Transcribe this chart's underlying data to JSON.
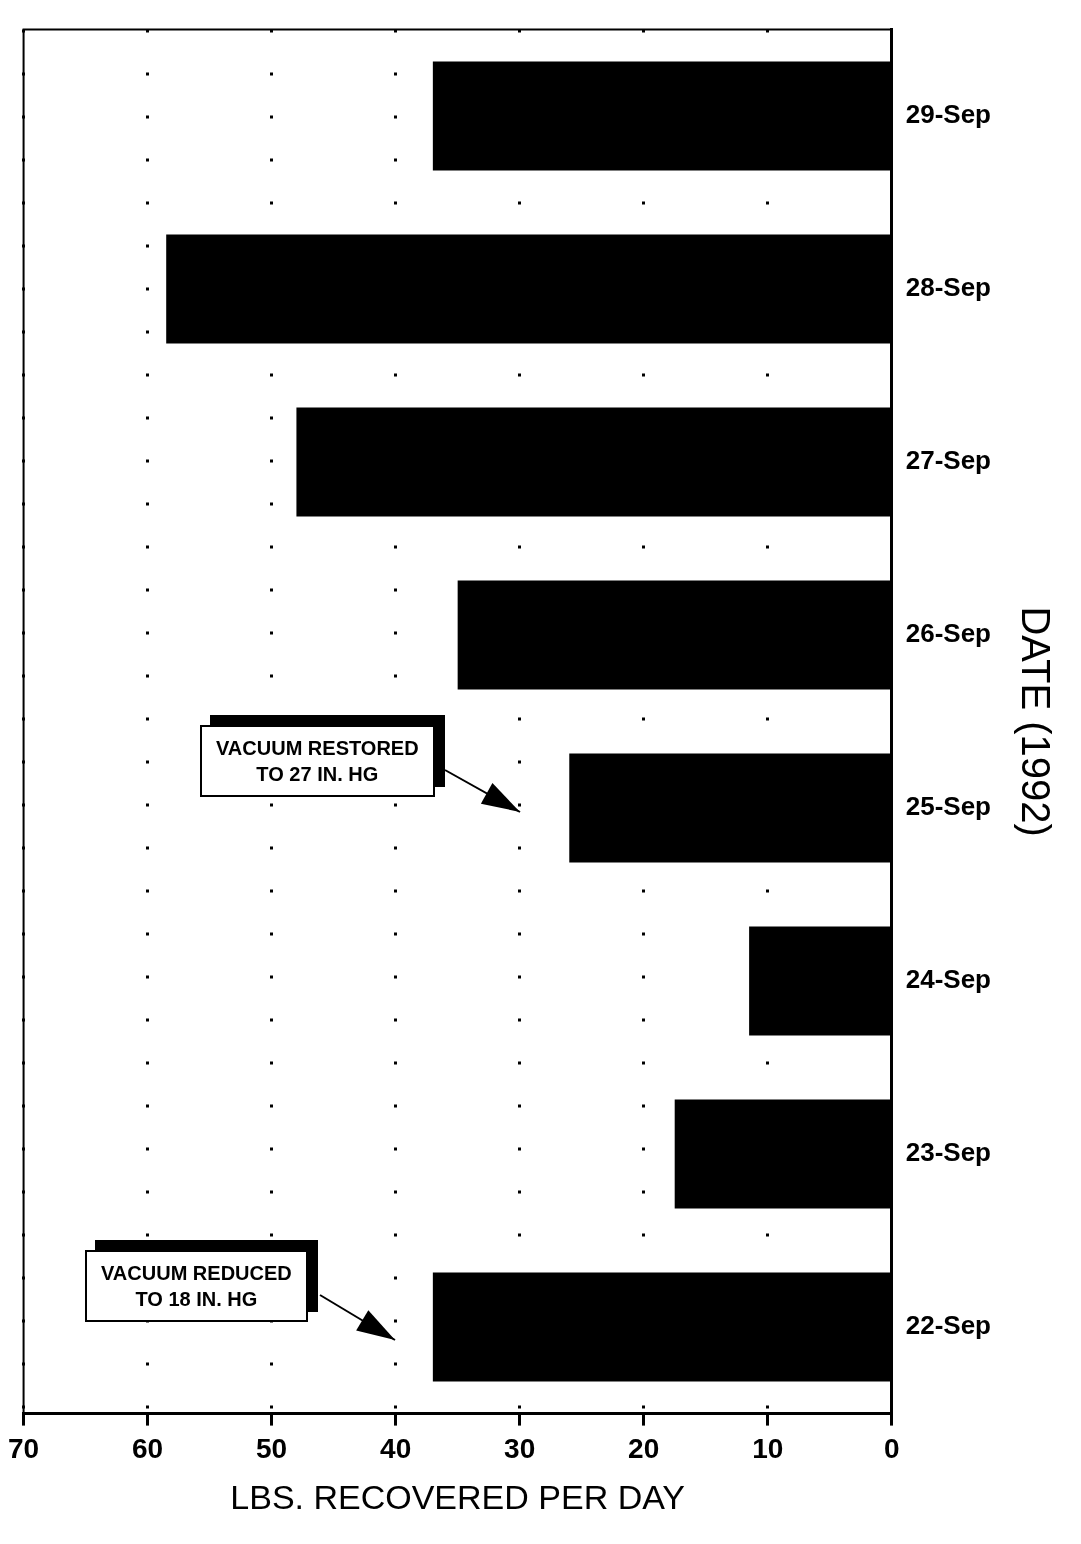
{
  "chart_data": {
    "type": "bar",
    "orientation": "horizontal",
    "categories": [
      "29-Sep",
      "28-Sep",
      "27-Sep",
      "26-Sep",
      "25-Sep",
      "24-Sep",
      "23-Sep",
      "22-Sep"
    ],
    "values": [
      37,
      58.5,
      48,
      35,
      26,
      11.5,
      17.5,
      37
    ],
    "color": "#000000",
    "xlabel": "LBS. RECOVERED PER DAY",
    "ylabel": "DATE (1992)",
    "xlim": [
      70,
      0
    ],
    "xticks": [
      70,
      60,
      50,
      40,
      30,
      20,
      10,
      0
    ],
    "grid": "x",
    "annotations": [
      "VACUUM REDUCED\nTO 18 IN. HG",
      "VACUUM RESTORED\nTO 27 IN. HG"
    ]
  }
}
